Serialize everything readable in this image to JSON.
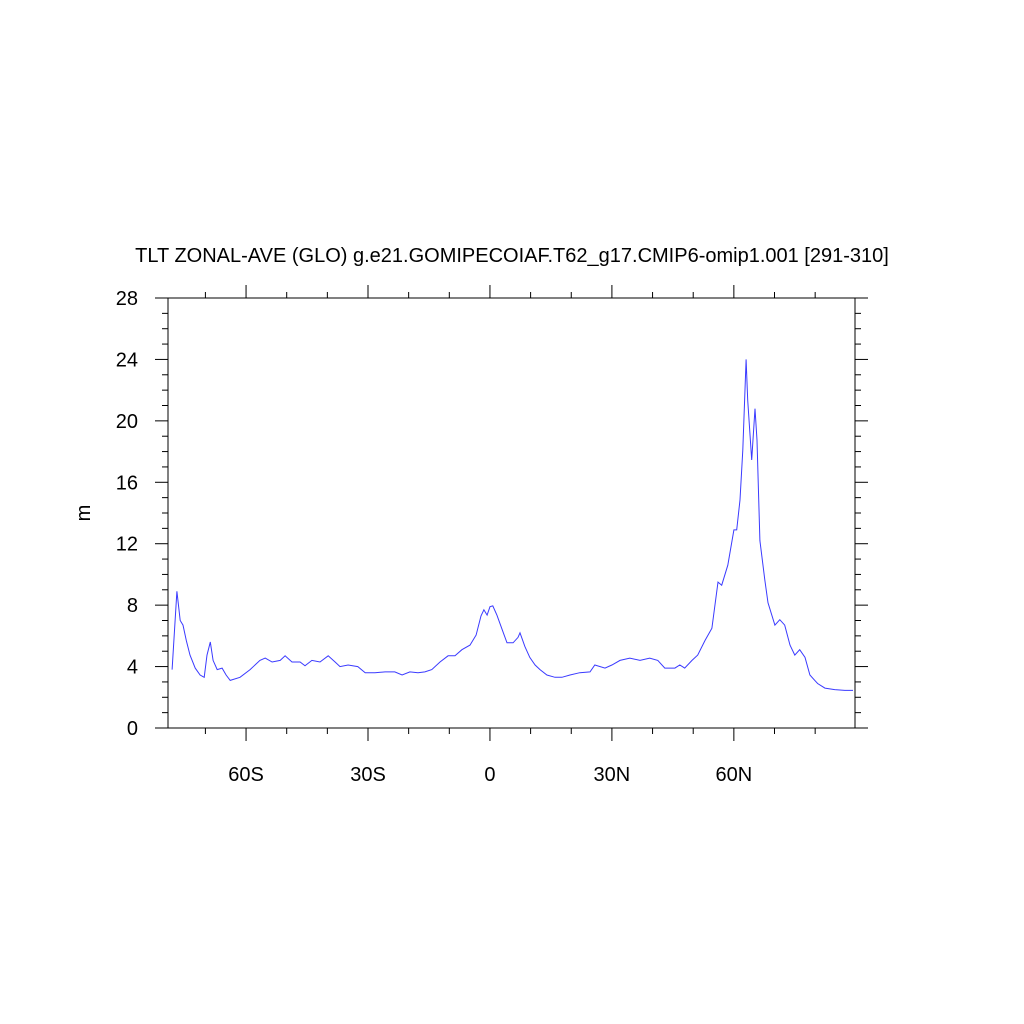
{
  "chart_data": {
    "type": "line",
    "title": "TLT ZONAL-AVE (GLO) g.e21.GOMIPECOIAF.T62_g17.CMIP6-omip1.001 [291-310]",
    "ylabel": "m",
    "xlim": [
      -79.2,
      89.8
    ],
    "ylim": [
      0,
      28
    ],
    "xticks": [
      {
        "value": -60,
        "label": "60S"
      },
      {
        "value": -30,
        "label": "30S"
      },
      0,
      {
        "value": 30,
        "label": "30N"
      },
      {
        "value": 60,
        "label": "60N"
      }
    ],
    "xminorticks": [
      -70,
      -50,
      -40,
      -20,
      -10,
      10,
      20,
      40,
      50,
      70,
      80
    ],
    "yticks": [
      0,
      4,
      8,
      12,
      16,
      20,
      24,
      28
    ],
    "yminorticks": [
      1,
      2,
      3,
      5,
      6,
      7,
      9,
      10,
      11,
      13,
      14,
      15,
      17,
      18,
      19,
      21,
      22,
      23,
      25,
      26,
      27
    ],
    "x": [
      -78.2,
      -77,
      -76.2,
      -75.5,
      -74.7,
      -73.8,
      -72.5,
      -71.3,
      -70.3,
      -69.6,
      -68.8,
      -68.1,
      -67.1,
      -65.9,
      -64.9,
      -63.9,
      -61.5,
      -59,
      -56.6,
      -55.3,
      -53.6,
      -51.6,
      -50.4,
      -48.7,
      -46.7,
      -45.5,
      -43.8,
      -41.8,
      -39.8,
      -38.1,
      -36.9,
      -34.9,
      -32.5,
      -30.7,
      -28.3,
      -25.8,
      -23.4,
      -21.6,
      -19.7,
      -17.7,
      -16,
      -14.3,
      -12.3,
      -10.3,
      -8.6,
      -6.9,
      -4.9,
      -3.4,
      -2.2,
      -1.5,
      -0.7,
      0,
      0.7,
      1.7,
      3,
      4.2,
      5.7,
      6.9,
      7.4,
      8.6,
      9.8,
      11.1,
      12.3,
      14,
      16,
      17.7,
      19.7,
      22.1,
      24.6,
      25.8,
      28.3,
      30,
      32,
      34.4,
      36.9,
      39.3,
      41.3,
      43,
      45.5,
      46.7,
      47.9,
      49.7,
      51.1,
      52.9,
      54.6,
      56.1,
      57,
      58.5,
      60,
      60.7,
      61.5,
      62.2,
      63,
      63.4,
      64.4,
      65.2,
      65.7,
      66.4,
      67.6,
      68.4,
      70.1,
      71.3,
      72.5,
      73.8,
      75,
      76.2,
      77.5,
      78.7,
      79.9,
      80.6,
      82.4,
      84.8,
      87.3,
      89.3
    ],
    "series": [
      {
        "color": "#3a3aff",
        "values": [
          3.8,
          8.9,
          7.0,
          6.7,
          5.7,
          4.75,
          3.9,
          3.45,
          3.3,
          4.75,
          5.6,
          4.4,
          3.8,
          3.9,
          3.45,
          3.1,
          3.3,
          3.8,
          4.4,
          4.55,
          4.3,
          4.4,
          4.7,
          4.3,
          4.3,
          4.05,
          4.4,
          4.3,
          4.7,
          4.3,
          4.0,
          4.1,
          4.0,
          3.6,
          3.6,
          3.65,
          3.65,
          3.45,
          3.65,
          3.6,
          3.65,
          3.8,
          4.3,
          4.7,
          4.7,
          5.1,
          5.4,
          6.05,
          7.3,
          7.7,
          7.35,
          7.9,
          7.95,
          7.35,
          6.4,
          5.55,
          5.55,
          5.9,
          6.2,
          5.3,
          4.6,
          4.1,
          3.8,
          3.45,
          3.3,
          3.3,
          3.45,
          3.6,
          3.65,
          4.1,
          3.9,
          4.1,
          4.4,
          4.55,
          4.4,
          4.55,
          4.4,
          3.9,
          3.9,
          4.1,
          3.9,
          4.4,
          4.75,
          5.7,
          6.5,
          9.5,
          9.3,
          10.6,
          12.9,
          12.9,
          14.85,
          18.1,
          24.0,
          21.35,
          17.45,
          20.8,
          18.75,
          12.2,
          9.65,
          8.15,
          6.7,
          7.05,
          6.7,
          5.4,
          4.75,
          5.1,
          4.6,
          3.45,
          3.1,
          2.9,
          2.6,
          2.5,
          2.45,
          2.45
        ]
      }
    ]
  }
}
